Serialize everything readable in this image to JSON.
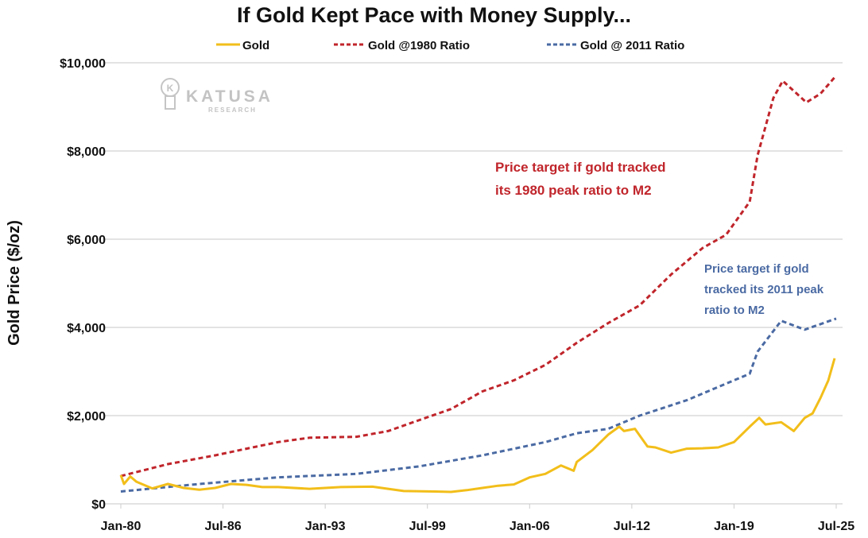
{
  "chart_data": {
    "type": "line",
    "title": "If Gold Kept Pace with Money Supply...",
    "xlabel": "",
    "ylabel": "Gold Price ($/oz)",
    "xlim": [
      1980,
      2025.5
    ],
    "ylim": [
      0,
      10000
    ],
    "grid": true,
    "legend_position": "top-center",
    "x_tick_labels": [
      {
        "label": "Jan-80",
        "x": 1980.0
      },
      {
        "label": "Jul-86",
        "x": 1986.5
      },
      {
        "label": "Jan-93",
        "x": 1993.0
      },
      {
        "label": "Jul-99",
        "x": 1999.5
      },
      {
        "label": "Jan-06",
        "x": 2006.0
      },
      {
        "label": "Jul-12",
        "x": 2012.5
      },
      {
        "label": "Jan-19",
        "x": 2019.0
      },
      {
        "label": "Jul-25",
        "x": 2025.5
      }
    ],
    "y_tick_labels": [
      {
        "label": "$0",
        "y": 0
      },
      {
        "label": "$2,000",
        "y": 2000
      },
      {
        "label": "$4,000",
        "y": 4000
      },
      {
        "label": "$6,000",
        "y": 6000
      },
      {
        "label": "$8,000",
        "y": 8000
      },
      {
        "label": "$10,000",
        "y": 10000
      }
    ],
    "series": [
      {
        "name": "Gold",
        "color": "#f2be1a",
        "style": "solid",
        "x": [
          1980,
          1980.2,
          1980.6,
          1981,
          1982,
          1983,
          1984,
          1985,
          1986,
          1987,
          1988,
          1989,
          1990,
          1992,
          1994,
          1996,
          1998,
          2000,
          2001,
          2002,
          2003,
          2004,
          2005,
          2006,
          2007,
          2008,
          2008.8,
          2009,
          2010,
          2011,
          2011.7,
          2012,
          2012.7,
          2013.5,
          2014,
          2015,
          2016,
          2017,
          2018,
          2019,
          2020,
          2020.6,
          2021,
          2022,
          2022.8,
          2023.5,
          2024,
          2024.5,
          2025,
          2025.4
        ],
        "y": [
          650,
          450,
          620,
          500,
          350,
          450,
          360,
          320,
          360,
          450,
          430,
          380,
          380,
          340,
          380,
          390,
          290,
          280,
          270,
          310,
          360,
          410,
          440,
          600,
          680,
          870,
          750,
          950,
          1220,
          1570,
          1750,
          1650,
          1700,
          1300,
          1280,
          1160,
          1250,
          1260,
          1280,
          1400,
          1750,
          1950,
          1800,
          1850,
          1650,
          1950,
          2050,
          2400,
          2800,
          3300
        ]
      },
      {
        "name": "Gold @1980 Ratio",
        "color": "#c0252b",
        "style": "dashed",
        "x": [
          1980,
          1983,
          1986,
          1988,
          1990,
          1992,
          1995,
          1997,
          1999,
          2001,
          2003,
          2005,
          2007,
          2009,
          2011,
          2013,
          2015,
          2017,
          2018.5,
          2020,
          2020.5,
          2021.5,
          2022.1,
          2023,
          2023.6,
          2024.5,
          2025.5
        ],
        "y": [
          630,
          900,
          1100,
          1250,
          1400,
          1500,
          1520,
          1650,
          1900,
          2150,
          2550,
          2800,
          3150,
          3650,
          4100,
          4500,
          5200,
          5800,
          6100,
          6850,
          7900,
          9200,
          9590,
          9300,
          9100,
          9300,
          9710
        ]
      },
      {
        "name": "Gold @ 2011 Ratio",
        "color": "#4a6aa3",
        "style": "dashed",
        "x": [
          1980,
          1985,
          1990,
          1995,
          1999,
          2003,
          2007,
          2009,
          2011,
          2013,
          2016,
          2018,
          2020,
          2020.5,
          2022,
          2023.5,
          2025.5
        ],
        "y": [
          280,
          450,
          600,
          680,
          850,
          1100,
          1400,
          1600,
          1700,
          2000,
          2350,
          2650,
          2950,
          3450,
          4150,
          3950,
          4200
        ]
      }
    ],
    "annotations": [
      {
        "series": "Gold @1980 Ratio",
        "lines": [
          "Price target if gold tracked",
          "its 1980 peak ratio to M2"
        ]
      },
      {
        "series": "Gold @ 2011 Ratio",
        "lines": [
          "Price target if gold",
          "tracked its 2011 peak",
          "ratio to M2"
        ]
      }
    ],
    "watermark": {
      "brand": "KATUSA",
      "sub": "RESEARCH",
      "mark": "K"
    }
  }
}
